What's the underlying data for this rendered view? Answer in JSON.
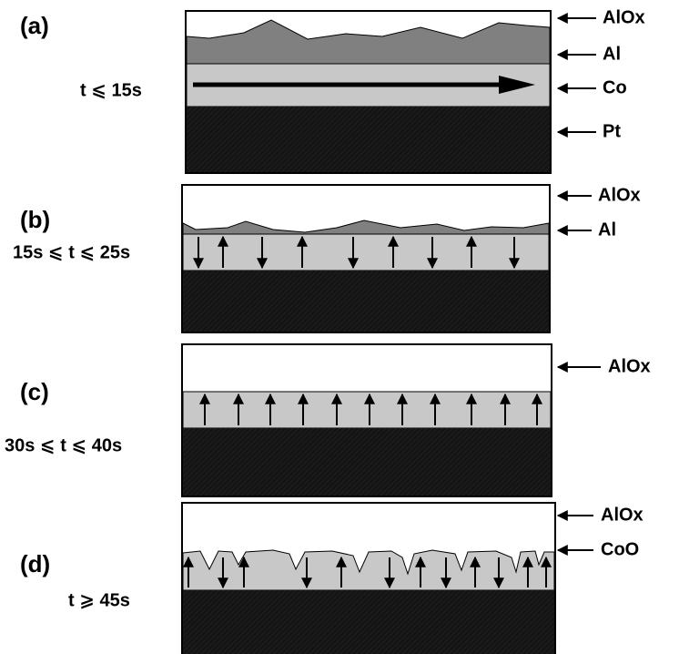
{
  "panels": [
    {
      "label": "(a)",
      "time": "t ⩽ 15s",
      "layers": [
        "AlOx",
        "Al",
        "Co",
        "Pt"
      ]
    },
    {
      "label": "(b)",
      "time": "15s ⩽ t ⩽ 25s",
      "layers": [
        "AlOx",
        "Al"
      ]
    },
    {
      "label": "(c)",
      "time": "30s ⩽ t ⩽ 40s",
      "layers": [
        "AlOx"
      ]
    },
    {
      "label": "(d)",
      "time": "t ⩾ 45s",
      "layers": [
        "AlOx",
        "CoO"
      ]
    }
  ]
}
